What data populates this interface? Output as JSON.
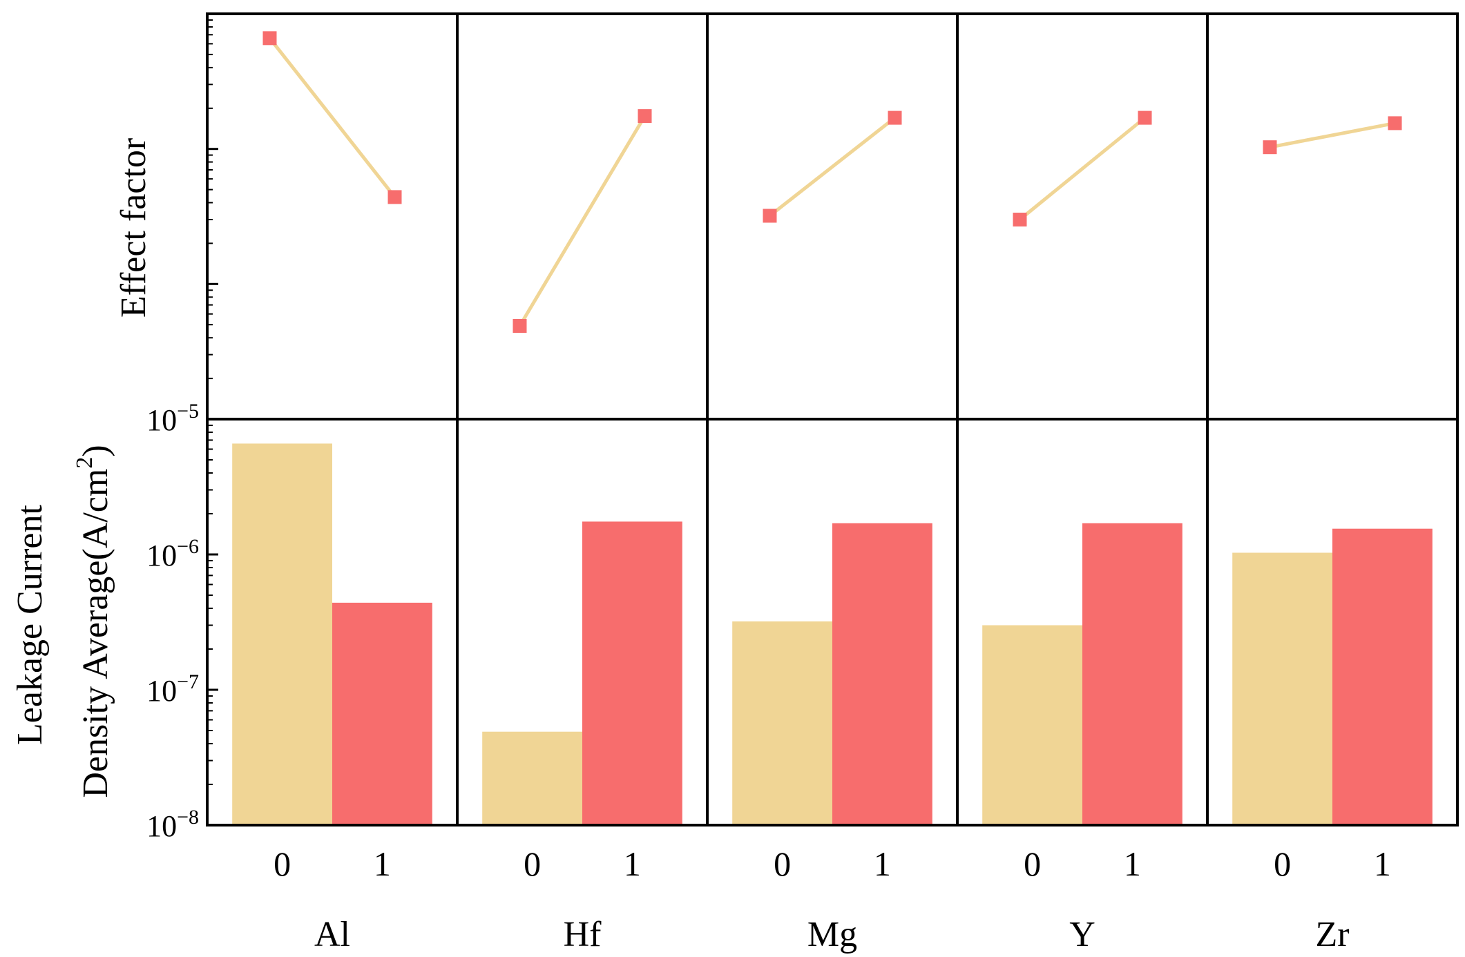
{
  "chart_data": [
    {
      "type": "line",
      "panel": "top",
      "ylabel": "Effect factor",
      "yscale": "log",
      "ylim": [
        1e-08,
        1e-05
      ],
      "x_ticks": [
        "0",
        "1"
      ],
      "groups": [
        {
          "name": "Al",
          "values": [
            6.6e-06,
            4.4e-07
          ]
        },
        {
          "name": "Hf",
          "values": [
            4.9e-08,
            1.75e-06
          ]
        },
        {
          "name": "Mg",
          "values": [
            3.2e-07,
            1.7e-06
          ]
        },
        {
          "name": "Y",
          "values": [
            3e-07,
            1.7e-06
          ]
        },
        {
          "name": "Zr",
          "values": [
            1.03e-06,
            1.55e-06
          ]
        }
      ],
      "colors": {
        "line": "#f0d595",
        "marker": "#f76d6d"
      }
    },
    {
      "type": "bar",
      "panel": "bottom",
      "ylabel_line1": "Leakage Current",
      "ylabel_line2": "Density Average(A/cm",
      "ylabel_sup": "2",
      "ylabel_close": ")",
      "yscale": "log",
      "ylim": [
        1e-08,
        1e-05
      ],
      "y_ticks": [
        {
          "value": 1e-05,
          "base": "10",
          "exp": "−5"
        },
        {
          "value": 1e-06,
          "base": "10",
          "exp": "−6"
        },
        {
          "value": 1e-07,
          "base": "10",
          "exp": "−7"
        },
        {
          "value": 1e-08,
          "base": "10",
          "exp": "−8"
        }
      ],
      "x_ticks": [
        "0",
        "1"
      ],
      "groups": [
        {
          "name": "Al",
          "values": [
            6.6e-06,
            4.4e-07
          ]
        },
        {
          "name": "Hf",
          "values": [
            4.9e-08,
            1.75e-06
          ]
        },
        {
          "name": "Mg",
          "values": [
            3.2e-07,
            1.7e-06
          ]
        },
        {
          "name": "Y",
          "values": [
            3e-07,
            1.7e-06
          ]
        },
        {
          "name": "Zr",
          "values": [
            1.03e-06,
            1.55e-06
          ]
        }
      ],
      "colors": {
        "bar0": "#f0d595",
        "bar1": "#f76d6d"
      }
    }
  ]
}
